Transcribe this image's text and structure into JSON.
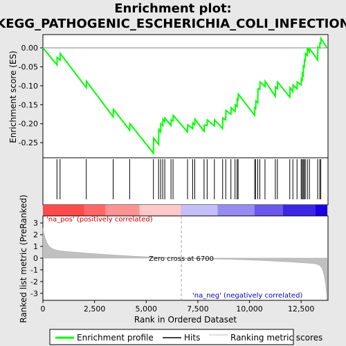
{
  "chart_data": {
    "type": "line",
    "title_line1": "Enrichment plot:",
    "title_line2": "KEGG_PATHOGENIC_ESCHERICHIA_COLI_INFECTION",
    "xlabel": "Rank in Ordered Dataset",
    "ylabel_top": "Enrichment score (ES)",
    "ylabel_bottom": "Ranked list metric (PreRanked)",
    "xlim": [
      0,
      13800
    ],
    "x_ticks": [
      0,
      2500,
      5000,
      7500,
      10000,
      12500
    ],
    "x_tick_labels": [
      "0",
      "2,500",
      "5,000",
      "7,500",
      "10,000",
      "12,500"
    ],
    "es_ylim": [
      -0.29,
      0.035
    ],
    "es_ticks": [
      0.0,
      -0.05,
      -0.1,
      -0.15,
      -0.2,
      -0.25
    ],
    "es_tick_labels": [
      "0.00",
      "-0.05",
      "-0.10",
      "-0.15",
      "-0.20",
      "-0.25"
    ],
    "metric_ylim": [
      -3.6,
      3.6
    ],
    "metric_ticks": [
      3,
      2,
      1,
      0,
      -1,
      -2,
      -3
    ],
    "metric_tick_labels": [
      "3",
      "2",
      "1",
      "0",
      "-1",
      "-2",
      "-3"
    ],
    "hits": [
      680,
      830,
      2100,
      3400,
      4200,
      5350,
      5600,
      5700,
      5800,
      5900,
      6200,
      6300,
      7000,
      7250,
      7350,
      7800,
      7950,
      8300,
      8700,
      8850,
      9100,
      9300,
      9400,
      9450,
      10250,
      10300,
      10400,
      10500,
      10750,
      11250,
      11350,
      11950,
      12100,
      12300,
      12500,
      12550,
      12600,
      12650,
      12700,
      12800,
      12900,
      13300,
      13400,
      13450
    ],
    "es_curve": {
      "x": [
        0,
        680,
        690,
        830,
        840,
        2100,
        2110,
        3400,
        3410,
        4200,
        4210,
        5350,
        5360,
        5600,
        5610,
        5700,
        5710,
        5800,
        5810,
        5900,
        5910,
        6200,
        6210,
        6300,
        6310,
        7000,
        7010,
        7250,
        7260,
        7350,
        7360,
        7800,
        7810,
        7950,
        7960,
        8300,
        8310,
        8700,
        8710,
        8850,
        8860,
        9100,
        9110,
        9300,
        9310,
        9400,
        9410,
        9450,
        9460,
        10250,
        10260,
        10300,
        10310,
        10400,
        10410,
        10500,
        10510,
        10750,
        10760,
        11250,
        11260,
        11350,
        11360,
        11950,
        11960,
        12100,
        12110,
        12300,
        12310,
        12500,
        12510,
        12550,
        12560,
        12600,
        12610,
        12650,
        12660,
        12700,
        12710,
        12800,
        12810,
        12900,
        12910,
        13300,
        13310,
        13400,
        13410,
        13450,
        13460,
        13750
      ],
      "y": [
        0.0,
        -0.045,
        -0.025,
        -0.032,
        -0.015,
        -0.105,
        -0.088,
        -0.182,
        -0.162,
        -0.217,
        -0.2,
        -0.278,
        -0.238,
        -0.255,
        -0.215,
        -0.222,
        -0.2,
        -0.205,
        -0.188,
        -0.195,
        -0.185,
        -0.205,
        -0.19,
        -0.193,
        -0.178,
        -0.222,
        -0.203,
        -0.213,
        -0.198,
        -0.203,
        -0.188,
        -0.22,
        -0.203,
        -0.205,
        -0.19,
        -0.206,
        -0.19,
        -0.213,
        -0.185,
        -0.19,
        -0.165,
        -0.175,
        -0.158,
        -0.168,
        -0.15,
        -0.155,
        -0.132,
        -0.14,
        -0.122,
        -0.178,
        -0.158,
        -0.16,
        -0.14,
        -0.145,
        -0.108,
        -0.11,
        -0.09,
        -0.102,
        -0.088,
        -0.128,
        -0.103,
        -0.108,
        -0.09,
        -0.13,
        -0.105,
        -0.115,
        -0.098,
        -0.108,
        -0.09,
        -0.098,
        -0.082,
        -0.085,
        -0.068,
        -0.072,
        -0.048,
        -0.05,
        -0.03,
        -0.035,
        -0.015,
        -0.02,
        -0.0,
        -0.01,
        -0.002,
        -0.032,
        0.002,
        -0.0,
        0.015,
        0.01,
        0.025,
        0.0
      ]
    },
    "zero_cross_rank": 6700,
    "zero_cross_label": "Zero cross at 6700",
    "pos_label": "'na_pos' (positively correlated)",
    "neg_label": "'na_neg' (negatively correlated)",
    "legend": [
      "Enrichment profile",
      "Hits",
      "Ranking metric scores"
    ],
    "colors": {
      "es_line": "#00ff00",
      "hit": "#000000",
      "metric_fill": "#c0c0c0",
      "pos_text": "#cc0000",
      "neg_text": "#0000cc",
      "zero_line": "#a0a0a0",
      "background": "#e8e8e8"
    }
  }
}
